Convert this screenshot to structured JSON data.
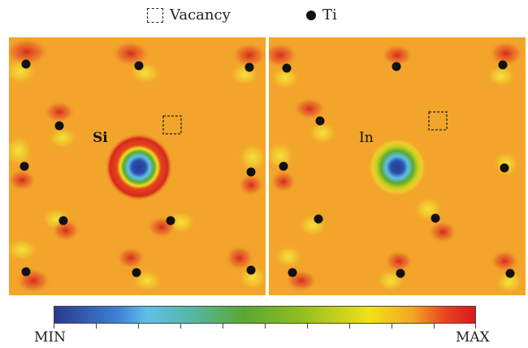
{
  "legend": {
    "vacancy_label": "Vacancy",
    "ti_label": "Ti"
  },
  "panels": [
    {
      "dopant_label": "Si"
    },
    {
      "dopant_label": "In"
    }
  ],
  "colorbar": {
    "min_label": "MIN",
    "max_label": "MAX",
    "colors": [
      "#2a3a8f",
      "#5fbfe8",
      "#5aa832",
      "#f0e11a",
      "#f5a623",
      "#d7191c"
    ]
  }
}
